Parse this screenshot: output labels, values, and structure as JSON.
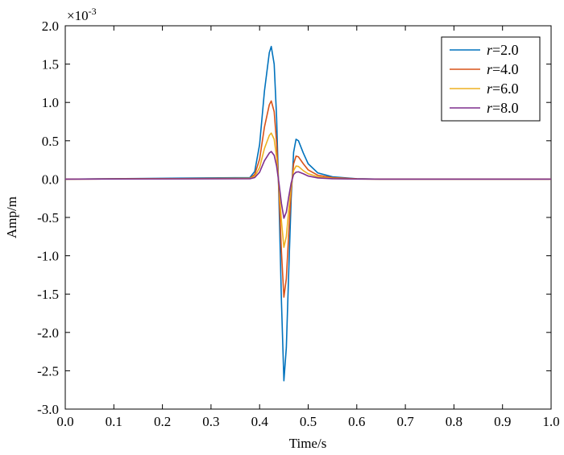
{
  "chart_data": {
    "type": "line",
    "title": "",
    "xlabel": "Time/s",
    "ylabel": "Amp/m",
    "y_multiplier_label": "×10",
    "y_multiplier_exponent": "-3",
    "xlim": [
      0.0,
      1.0
    ],
    "ylim": [
      -3.0,
      2.0
    ],
    "x_ticks": [
      0.0,
      0.1,
      0.2,
      0.3,
      0.4,
      0.5,
      0.6,
      0.7,
      0.8,
      0.9,
      1.0
    ],
    "x_tick_labels": [
      "0.0",
      "0.1",
      "0.2",
      "0.3",
      "0.4",
      "0.5",
      "0.6",
      "0.7",
      "0.8",
      "0.9",
      "1.0"
    ],
    "y_ticks": [
      2.0,
      1.5,
      1.0,
      0.5,
      0.0,
      -0.5,
      -1.0,
      -1.5,
      -2.0,
      -2.5,
      -3.0
    ],
    "y_tick_labels": [
      "2.0",
      "1.5",
      "1.0",
      "0.5",
      "0.0",
      "-0.5",
      "-1.0",
      "-1.5",
      "-2.0",
      "-2.5",
      "-3.0"
    ],
    "grid": false,
    "legend_position": "top-right",
    "x": [
      0.0,
      0.38,
      0.39,
      0.4,
      0.41,
      0.42,
      0.424,
      0.43,
      0.435,
      0.44,
      0.445,
      0.45,
      0.455,
      0.46,
      0.465,
      0.47,
      0.475,
      0.48,
      0.49,
      0.5,
      0.52,
      0.55,
      0.6,
      0.65,
      0.7,
      1.0
    ],
    "series": [
      {
        "name": "r=2.0",
        "name_italic": "r",
        "name_rest": "=2.0",
        "color": "#0072BD",
        "values": [
          0.0,
          0.02,
          0.1,
          0.45,
          1.15,
          1.65,
          1.73,
          1.5,
          0.8,
          -0.3,
          -1.6,
          -2.63,
          -2.2,
          -1.2,
          -0.25,
          0.35,
          0.52,
          0.5,
          0.34,
          0.2,
          0.08,
          0.03,
          0.005,
          0.0,
          0.0,
          0.0
        ]
      },
      {
        "name": "r=4.0",
        "name_italic": "r",
        "name_rest": "=4.0",
        "color": "#D95319",
        "values": [
          0.0,
          0.01,
          0.06,
          0.26,
          0.68,
          0.97,
          1.02,
          0.88,
          0.47,
          -0.18,
          -0.95,
          -1.54,
          -1.3,
          -0.7,
          -0.15,
          0.2,
          0.3,
          0.29,
          0.2,
          0.12,
          0.05,
          0.02,
          0.003,
          0.0,
          0.0,
          0.0
        ]
      },
      {
        "name": "r=6.0",
        "name_italic": "r",
        "name_rest": "=6.0",
        "color": "#EDB120",
        "values": [
          0.0,
          0.01,
          0.035,
          0.15,
          0.4,
          0.57,
          0.6,
          0.52,
          0.28,
          -0.1,
          -0.55,
          -0.89,
          -0.75,
          -0.4,
          -0.09,
          0.11,
          0.17,
          0.165,
          0.11,
          0.07,
          0.03,
          0.01,
          0.002,
          0.0,
          0.0,
          0.0
        ]
      },
      {
        "name": "r=8.0",
        "name_italic": "r",
        "name_rest": "=8.0",
        "color": "#7E2F8E",
        "values": [
          0.0,
          0.005,
          0.02,
          0.09,
          0.24,
          0.34,
          0.36,
          0.31,
          0.17,
          -0.06,
          -0.32,
          -0.51,
          -0.43,
          -0.23,
          -0.05,
          0.06,
          0.09,
          0.095,
          0.07,
          0.04,
          0.015,
          0.005,
          0.001,
          0.0,
          0.0,
          0.0
        ]
      }
    ]
  }
}
